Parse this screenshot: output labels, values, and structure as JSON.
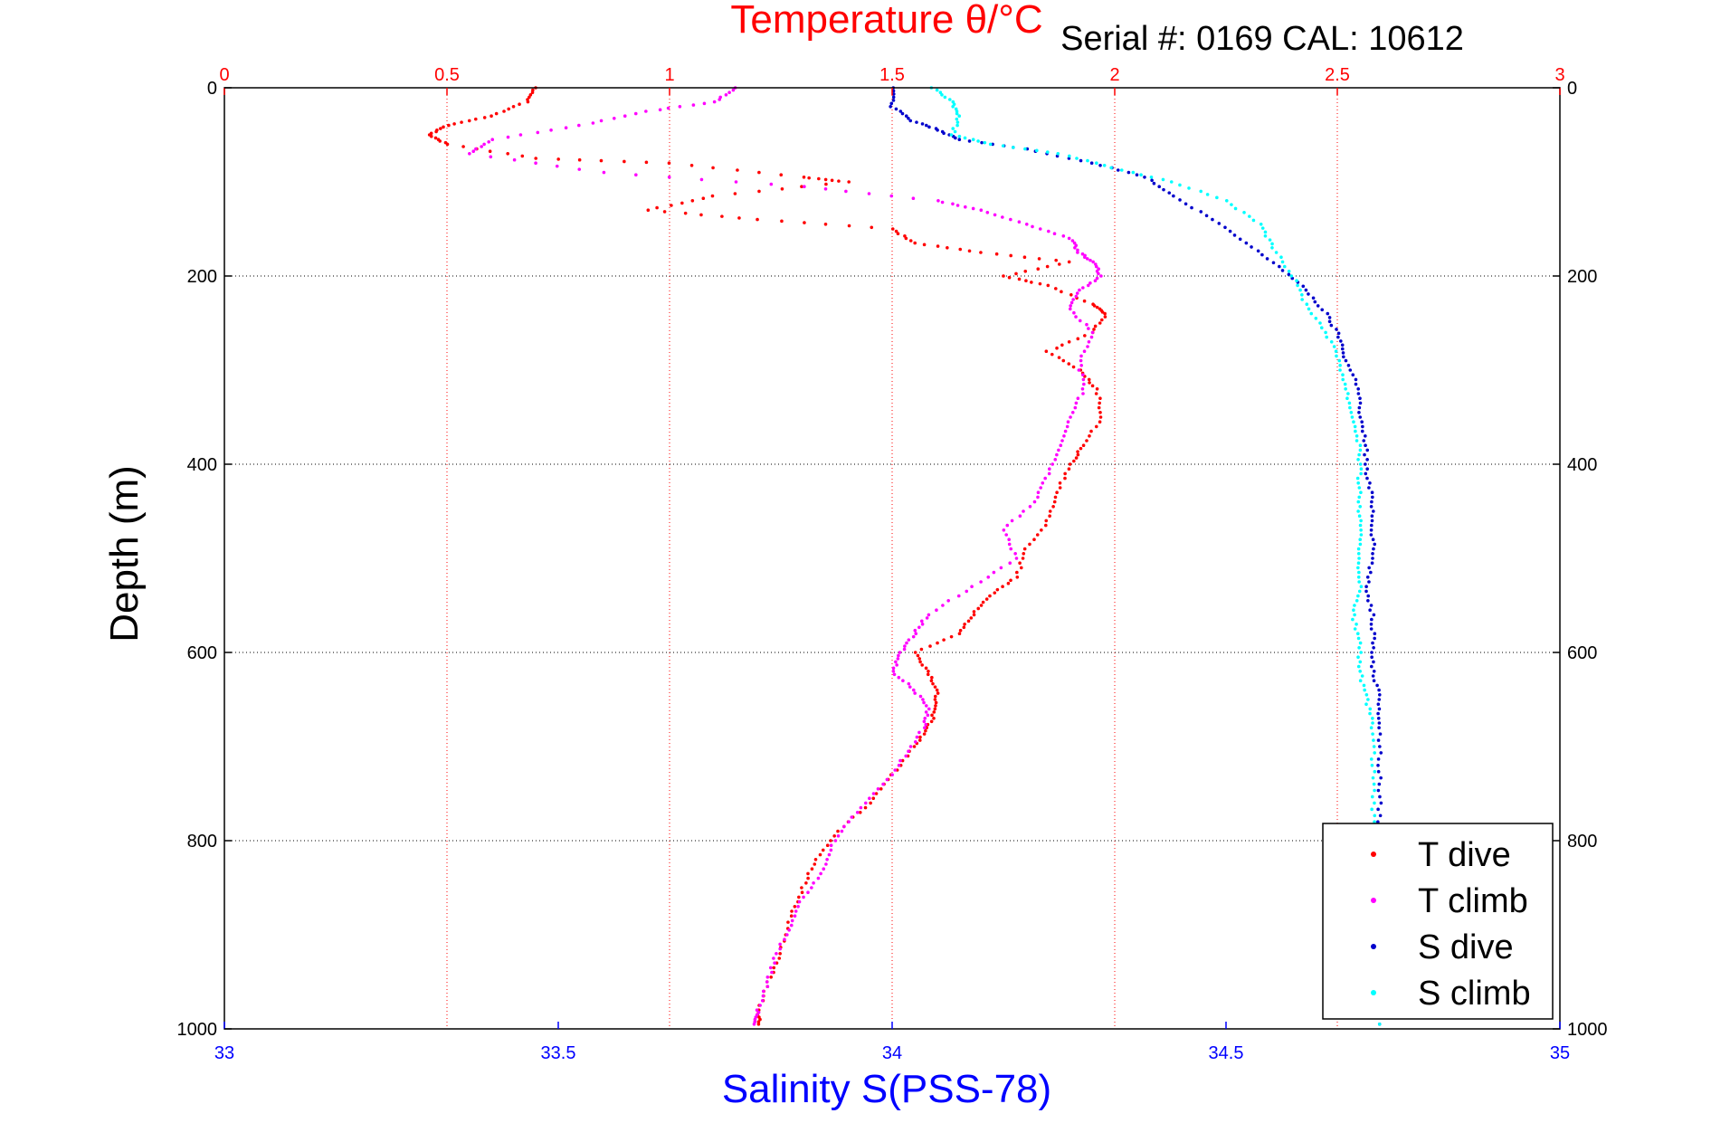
{
  "serial_text": "Serial #: 0169 CAL: 10612",
  "chart_data": {
    "type": "scatter",
    "title": "",
    "ylabel": "Depth (m)",
    "ylim": [
      0,
      1000
    ],
    "y_reversed": true,
    "yticks": [
      "0",
      "200",
      "400",
      "600",
      "800",
      "1000"
    ],
    "top_axis": {
      "label": "Temperature θ/°C",
      "range": [
        0,
        3
      ],
      "ticks": [
        "0",
        "0.5",
        "1",
        "1.5",
        "2",
        "2.5",
        "3"
      ],
      "color": "#ff0000"
    },
    "bottom_axis": {
      "label": "Salinity S(PSS-78)",
      "range": [
        33,
        35
      ],
      "ticks": [
        "33",
        "33.5",
        "34",
        "34.5",
        "35"
      ],
      "color": "#0000ff"
    },
    "grid": true,
    "legend_position": "bottom-right",
    "series": [
      {
        "name": "T dive",
        "axis": "temperature",
        "color": "#ff0000",
        "points": [
          [
            0.7,
            0
          ],
          [
            0.68,
            15
          ],
          [
            0.6,
            30
          ],
          [
            0.5,
            40
          ],
          [
            0.46,
            50
          ],
          [
            0.5,
            60
          ],
          [
            0.7,
            75
          ],
          [
            1.0,
            80
          ],
          [
            1.3,
            95
          ],
          [
            1.4,
            100
          ],
          [
            1.1,
            115
          ],
          [
            0.95,
            130
          ],
          [
            1.2,
            140
          ],
          [
            1.5,
            150
          ],
          [
            1.55,
            165
          ],
          [
            1.7,
            175
          ],
          [
            1.9,
            185
          ],
          [
            1.75,
            200
          ],
          [
            1.85,
            210
          ],
          [
            1.95,
            230
          ],
          [
            1.98,
            240
          ],
          [
            1.95,
            260
          ],
          [
            1.85,
            280
          ],
          [
            1.92,
            300
          ],
          [
            1.96,
            320
          ],
          [
            1.97,
            350
          ],
          [
            1.93,
            380
          ],
          [
            1.9,
            400
          ],
          [
            1.87,
            430
          ],
          [
            1.85,
            460
          ],
          [
            1.8,
            490
          ],
          [
            1.78,
            520
          ],
          [
            1.72,
            540
          ],
          [
            1.68,
            560
          ],
          [
            1.65,
            580
          ],
          [
            1.55,
            600
          ],
          [
            1.58,
            620
          ],
          [
            1.6,
            640
          ],
          [
            1.6,
            660
          ],
          [
            1.58,
            680
          ],
          [
            1.55,
            700
          ],
          [
            1.5,
            730
          ],
          [
            1.45,
            760
          ],
          [
            1.38,
            790
          ],
          [
            1.33,
            820
          ],
          [
            1.3,
            850
          ],
          [
            1.27,
            880
          ],
          [
            1.25,
            920
          ],
          [
            1.22,
            950
          ],
          [
            1.2,
            980
          ],
          [
            1.2,
            995
          ]
        ]
      },
      {
        "name": "T climb",
        "axis": "temperature",
        "color": "#ff00ff",
        "points": [
          [
            1.15,
            0
          ],
          [
            1.1,
            15
          ],
          [
            0.95,
            25
          ],
          [
            0.8,
            40
          ],
          [
            0.6,
            55
          ],
          [
            0.55,
            70
          ],
          [
            0.85,
            90
          ],
          [
            1.3,
            105
          ],
          [
            1.6,
            120
          ],
          [
            1.7,
            130
          ],
          [
            1.8,
            145
          ],
          [
            1.9,
            160
          ],
          [
            1.92,
            175
          ],
          [
            1.95,
            185
          ],
          [
            1.97,
            200
          ],
          [
            1.92,
            215
          ],
          [
            1.9,
            235
          ],
          [
            1.95,
            260
          ],
          [
            1.92,
            290
          ],
          [
            1.93,
            320
          ],
          [
            1.9,
            350
          ],
          [
            1.88,
            380
          ],
          [
            1.85,
            410
          ],
          [
            1.82,
            440
          ],
          [
            1.75,
            470
          ],
          [
            1.78,
            500
          ],
          [
            1.68,
            530
          ],
          [
            1.58,
            560
          ],
          [
            1.55,
            580
          ],
          [
            1.52,
            600
          ],
          [
            1.5,
            620
          ],
          [
            1.55,
            640
          ],
          [
            1.58,
            660
          ],
          [
            1.57,
            680
          ],
          [
            1.53,
            710
          ],
          [
            1.48,
            740
          ],
          [
            1.42,
            770
          ],
          [
            1.37,
            800
          ],
          [
            1.35,
            830
          ],
          [
            1.3,
            860
          ],
          [
            1.27,
            890
          ],
          [
            1.24,
            920
          ],
          [
            1.22,
            950
          ],
          [
            1.2,
            980
          ],
          [
            1.19,
            995
          ]
        ]
      },
      {
        "name": "S dive",
        "axis": "salinity",
        "color": "#0000cc",
        "points": [
          [
            34.0,
            0
          ],
          [
            34.0,
            20
          ],
          [
            34.03,
            35
          ],
          [
            34.07,
            45
          ],
          [
            34.1,
            55
          ],
          [
            34.2,
            65
          ],
          [
            34.3,
            80
          ],
          [
            34.38,
            95
          ],
          [
            34.42,
            115
          ],
          [
            34.48,
            140
          ],
          [
            34.53,
            165
          ],
          [
            34.58,
            190
          ],
          [
            34.62,
            215
          ],
          [
            34.65,
            240
          ],
          [
            34.67,
            265
          ],
          [
            34.68,
            290
          ],
          [
            34.7,
            320
          ],
          [
            34.7,
            350
          ],
          [
            34.71,
            380
          ],
          [
            34.71,
            410
          ],
          [
            34.72,
            440
          ],
          [
            34.72,
            470
          ],
          [
            34.72,
            500
          ],
          [
            34.71,
            530
          ],
          [
            34.72,
            560
          ],
          [
            34.72,
            590
          ],
          [
            34.72,
            620
          ],
          [
            34.73,
            650
          ],
          [
            34.73,
            680
          ],
          [
            34.73,
            720
          ],
          [
            34.73,
            760
          ],
          [
            34.73,
            800
          ],
          [
            34.73,
            850
          ],
          [
            34.73,
            900
          ],
          [
            34.73,
            950
          ],
          [
            34.73,
            995
          ]
        ]
      },
      {
        "name": "S climb",
        "axis": "salinity",
        "color": "#00ffff",
        "points": [
          [
            34.06,
            0
          ],
          [
            34.09,
            15
          ],
          [
            34.1,
            30
          ],
          [
            34.09,
            50
          ],
          [
            34.15,
            60
          ],
          [
            34.25,
            70
          ],
          [
            34.33,
            85
          ],
          [
            34.42,
            100
          ],
          [
            34.5,
            120
          ],
          [
            34.55,
            145
          ],
          [
            34.57,
            170
          ],
          [
            34.6,
            200
          ],
          [
            34.62,
            230
          ],
          [
            34.65,
            260
          ],
          [
            34.67,
            290
          ],
          [
            34.68,
            320
          ],
          [
            34.69,
            350
          ],
          [
            34.7,
            380
          ],
          [
            34.7,
            410
          ],
          [
            34.7,
            440
          ],
          [
            34.7,
            470
          ],
          [
            34.7,
            500
          ],
          [
            34.7,
            530
          ],
          [
            34.69,
            560
          ],
          [
            34.7,
            590
          ],
          [
            34.7,
            620
          ],
          [
            34.71,
            650
          ],
          [
            34.72,
            680
          ],
          [
            34.72,
            720
          ],
          [
            34.72,
            760
          ],
          [
            34.72,
            800
          ],
          [
            34.72,
            850
          ],
          [
            34.72,
            900
          ],
          [
            34.72,
            950
          ],
          [
            34.73,
            995
          ]
        ]
      }
    ]
  }
}
